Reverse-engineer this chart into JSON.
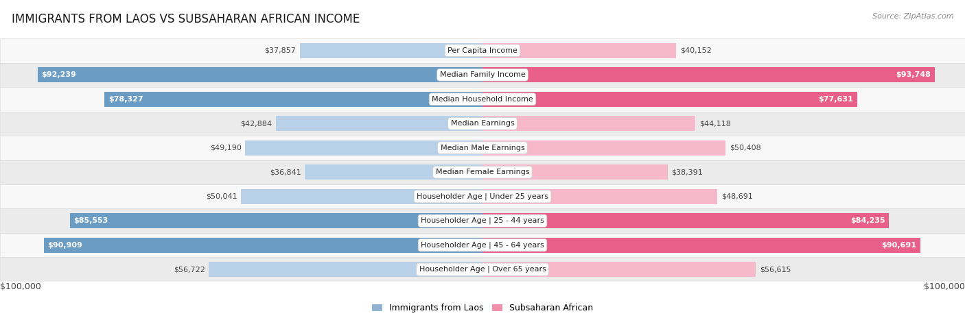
{
  "title": "IMMIGRANTS FROM LAOS VS SUBSAHARAN AFRICAN INCOME",
  "source": "Source: ZipAtlas.com",
  "categories": [
    "Per Capita Income",
    "Median Family Income",
    "Median Household Income",
    "Median Earnings",
    "Median Male Earnings",
    "Median Female Earnings",
    "Householder Age | Under 25 years",
    "Householder Age | 25 - 44 years",
    "Householder Age | 45 - 64 years",
    "Householder Age | Over 65 years"
  ],
  "laos_values": [
    37857,
    92239,
    78327,
    42884,
    49190,
    36841,
    50041,
    85553,
    90909,
    56722
  ],
  "subsaharan_values": [
    40152,
    93748,
    77631,
    44118,
    50408,
    38391,
    48691,
    84235,
    90691,
    56615
  ],
  "laos_labels": [
    "$37,857",
    "$92,239",
    "$78,327",
    "$42,884",
    "$49,190",
    "$36,841",
    "$50,041",
    "$85,553",
    "$90,909",
    "$56,722"
  ],
  "subsaharan_labels": [
    "$40,152",
    "$93,748",
    "$77,631",
    "$44,118",
    "$50,408",
    "$38,391",
    "$48,691",
    "$84,235",
    "$90,691",
    "$56,615"
  ],
  "max_value": 100000,
  "laos_color_light": "#b8d0e8",
  "laos_color_dark": "#6b9cc4",
  "subsaharan_color_light": "#f8b8cc",
  "subsaharan_color_dark": "#e8608a",
  "laos_color_legend": "#92b4d4",
  "subsaharan_color_legend": "#f090aa",
  "row_bg_light": "#f8f8f8",
  "row_bg_dark": "#ebebeb",
  "border_color": "#dddddd",
  "label_fontsize": 8.0,
  "title_fontsize": 12,
  "category_fontsize": 8.0,
  "legend_fontsize": 9,
  "xlabel_left": "$100,000",
  "xlabel_right": "$100,000",
  "inside_label_threshold": 58000
}
